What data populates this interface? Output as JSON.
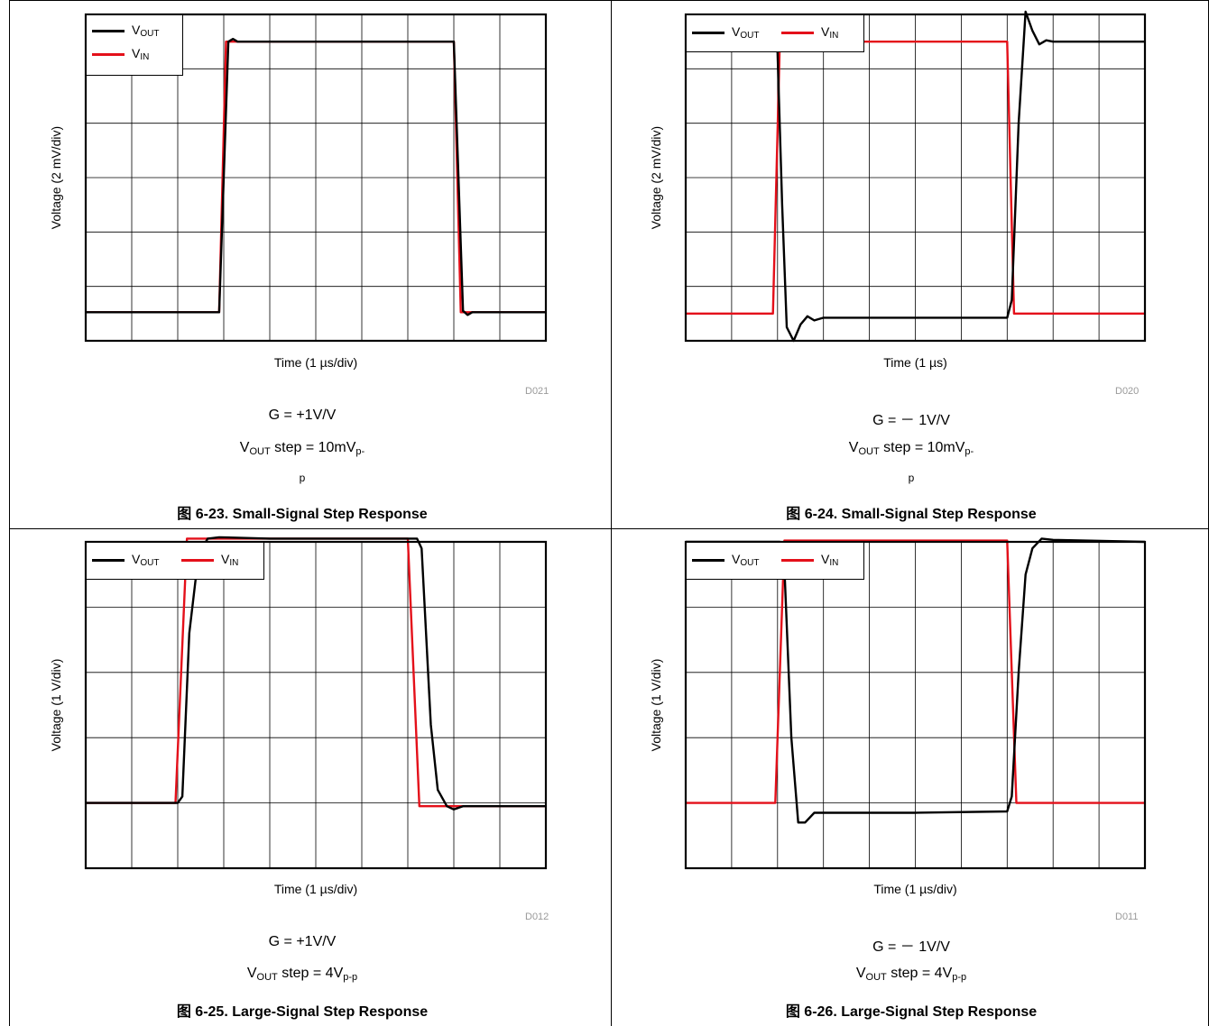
{
  "panels": [
    {
      "id": "fig-6-23",
      "ylabel": "Voltage (2 mV/div)",
      "xlabel": "Time (1 µs/div)",
      "code": "D021",
      "gain": "G = +1V/V",
      "step_prefix": "V",
      "step_sub": "OUT",
      "step_mid": " step = 10mV",
      "step_end_sub": "p-",
      "step_wrap": "p",
      "figure": "图 6-23. Small-Signal Step Response"
    },
    {
      "id": "fig-6-24",
      "ylabel": "Voltage (2 mV/div)",
      "xlabel": "Time (1 µs)",
      "code": "D020",
      "gain": "G = － 1V/V",
      "step_prefix": "V",
      "step_sub": "OUT",
      "step_mid": " step = 10mV",
      "step_end_sub": "p-",
      "step_wrap": "p",
      "figure": "图 6-24. Small-Signal Step Response"
    },
    {
      "id": "fig-6-25",
      "ylabel": "Voltage (1 V/div)",
      "xlabel": "Time (1 µs/div)",
      "code": "D012",
      "gain": "G = +1V/V",
      "step_prefix": "V",
      "step_sub": "OUT",
      "step_mid": " step = 4V",
      "step_end_sub": "p-p",
      "step_wrap": "",
      "figure": "图 6-25. Large-Signal Step Response"
    },
    {
      "id": "fig-6-26",
      "ylabel": "Voltage (1 V/div)",
      "xlabel": "Time (1 µs/div)",
      "code": "D011",
      "gain": "G = － 1V/V",
      "step_prefix": "V",
      "step_sub": "OUT",
      "step_mid": " step = 4V",
      "step_end_sub": "p-p",
      "step_wrap": "",
      "figure": "图 6-26. Large-Signal Step Response"
    }
  ],
  "legend": {
    "vout_main": "V",
    "vout_sub": "OUT",
    "vin_main": "V",
    "vin_sub": "IN",
    "vout_color": "#000000",
    "vin_color": "#e4101a"
  },
  "chart_data": [
    {
      "type": "line",
      "title": "图 6-23. Small-Signal Step Response",
      "xlabel": "Time (1 µs/div)",
      "ylabel": "Voltage (2 mV/div)",
      "xlim": [
        0,
        10
      ],
      "ylim": [
        -6,
        6
      ],
      "grid": true,
      "legend": "top-left",
      "series": [
        {
          "name": "VOUT",
          "color": "#000000",
          "points": [
            [
              0,
              -4.95
            ],
            [
              2.9,
              -4.95
            ],
            [
              3.1,
              5.0
            ],
            [
              3.2,
              5.1
            ],
            [
              3.3,
              5.0
            ],
            [
              8.0,
              5.0
            ],
            [
              8.2,
              -4.9
            ],
            [
              8.3,
              -5.05
            ],
            [
              8.4,
              -4.95
            ],
            [
              10,
              -4.95
            ]
          ]
        },
        {
          "name": "VIN",
          "color": "#e4101a",
          "points": [
            [
              0,
              -4.95
            ],
            [
              2.9,
              -4.95
            ],
            [
              3.05,
              5.0
            ],
            [
              8.0,
              5.0
            ],
            [
              8.15,
              -4.95
            ],
            [
              10,
              -4.95
            ]
          ]
        }
      ]
    },
    {
      "type": "line",
      "title": "图 6-24. Small-Signal Step Response",
      "xlabel": "Time (1 µs)",
      "ylabel": "Voltage (2 mV/div)",
      "xlim": [
        0,
        10
      ],
      "ylim": [
        -6,
        6
      ],
      "grid": true,
      "legend": "top-left",
      "series": [
        {
          "name": "VOUT",
          "color": "#000000",
          "points": [
            [
              0,
              5.0
            ],
            [
              1.9,
              5.0
            ],
            [
              2.0,
              4.6
            ],
            [
              2.1,
              -1.0
            ],
            [
              2.2,
              -5.5
            ],
            [
              2.35,
              -6.0
            ],
            [
              2.5,
              -5.4
            ],
            [
              2.65,
              -5.1
            ],
            [
              2.8,
              -5.25
            ],
            [
              3.0,
              -5.15
            ],
            [
              5.0,
              -5.15
            ],
            [
              7.0,
              -5.15
            ],
            [
              7.0,
              -5.15
            ],
            [
              7.1,
              -4.5
            ],
            [
              7.25,
              2.0
            ],
            [
              7.4,
              6.1
            ],
            [
              7.55,
              5.4
            ],
            [
              7.7,
              4.9
            ],
            [
              7.85,
              5.05
            ],
            [
              8.0,
              5.0
            ],
            [
              10,
              5.0
            ]
          ]
        },
        {
          "name": "VIN",
          "color": "#e4101a",
          "points": [
            [
              0,
              -5.0
            ],
            [
              1.9,
              -5.0
            ],
            [
              2.05,
              5.0
            ],
            [
              7.0,
              5.0
            ],
            [
              7.15,
              -5.0
            ],
            [
              10,
              -5.0
            ]
          ]
        }
      ]
    },
    {
      "type": "line",
      "title": "图 6-25. Large-Signal Step Response",
      "xlabel": "Time (1 µs/div)",
      "ylabel": "Voltage (1 V/div)",
      "xlim": [
        0,
        10
      ],
      "ylim": [
        -3,
        2
      ],
      "grid": true,
      "legend": "top-left",
      "series": [
        {
          "name": "VOUT",
          "color": "#000000",
          "points": [
            [
              0,
              -2.0
            ],
            [
              2.0,
              -2.0
            ],
            [
              2.1,
              -1.9
            ],
            [
              2.25,
              0.6
            ],
            [
              2.45,
              1.8
            ],
            [
              2.65,
              2.05
            ],
            [
              2.9,
              2.07
            ],
            [
              4.0,
              2.05
            ],
            [
              7.2,
              2.05
            ],
            [
              7.3,
              1.9
            ],
            [
              7.5,
              -0.8
            ],
            [
              7.65,
              -1.8
            ],
            [
              7.85,
              -2.05
            ],
            [
              8.0,
              -2.1
            ],
            [
              8.2,
              -2.05
            ],
            [
              10,
              -2.05
            ]
          ]
        },
        {
          "name": "VIN",
          "color": "#e4101a",
          "points": [
            [
              0,
              -2.0
            ],
            [
              1.95,
              -2.0
            ],
            [
              2.2,
              2.05
            ],
            [
              7.0,
              2.05
            ],
            [
              7.25,
              -2.05
            ],
            [
              10,
              -2.05
            ]
          ]
        }
      ]
    },
    {
      "type": "line",
      "title": "图 6-26. Large-Signal Step Response",
      "xlabel": "Time (1 µs/div)",
      "ylabel": "Voltage (1 V/div)",
      "xlim": [
        0,
        10
      ],
      "ylim": [
        -3,
        2
      ],
      "grid": true,
      "legend": "top-left",
      "series": [
        {
          "name": "VOUT",
          "color": "#000000",
          "points": [
            [
              0,
              2.0
            ],
            [
              2.05,
              2.0
            ],
            [
              2.15,
              1.6
            ],
            [
              2.3,
              -1.0
            ],
            [
              2.45,
              -2.3
            ],
            [
              2.6,
              -2.3
            ],
            [
              2.8,
              -2.15
            ],
            [
              3.2,
              -2.15
            ],
            [
              5.0,
              -2.15
            ],
            [
              7.0,
              -2.13
            ],
            [
              7.0,
              -2.13
            ],
            [
              7.1,
              -1.9
            ],
            [
              7.25,
              0.0
            ],
            [
              7.4,
              1.5
            ],
            [
              7.55,
              1.9
            ],
            [
              7.75,
              2.05
            ],
            [
              8.0,
              2.03
            ],
            [
              10,
              2.0
            ]
          ]
        },
        {
          "name": "VIN",
          "color": "#e4101a",
          "points": [
            [
              0,
              -2.0
            ],
            [
              1.95,
              -2.0
            ],
            [
              2.15,
              2.02
            ],
            [
              7.0,
              2.02
            ],
            [
              7.2,
              -2.0
            ],
            [
              10,
              -2.0
            ]
          ]
        }
      ]
    }
  ]
}
